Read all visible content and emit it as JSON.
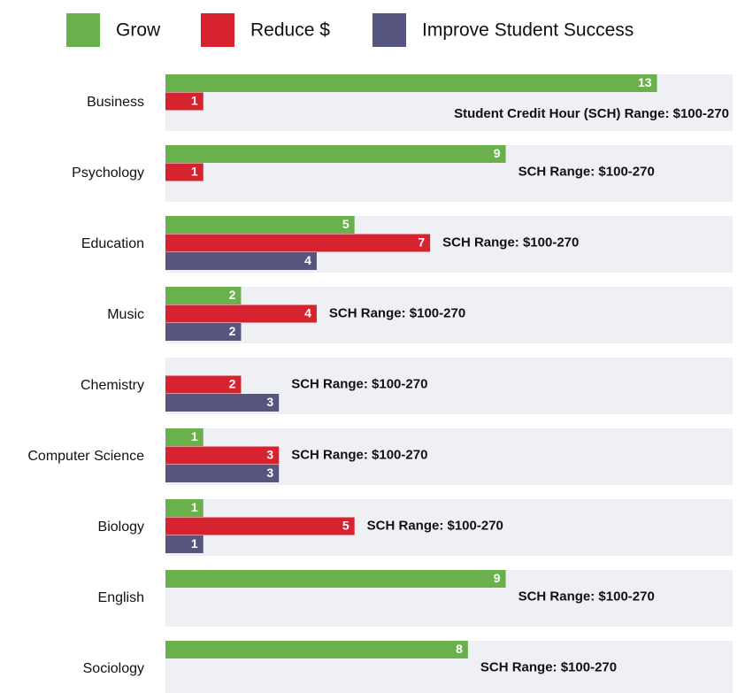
{
  "chart_data": {
    "type": "hbar",
    "categories": [
      "Business",
      "Psychology",
      "Education",
      "Music",
      "Chemistry",
      "Computer Science",
      "Biology",
      "English",
      "Sociology"
    ],
    "series": [
      {
        "name": "Grow",
        "color": "#6ab04c",
        "values": [
          13,
          9,
          5,
          2,
          null,
          1,
          1,
          9,
          8
        ]
      },
      {
        "name": "Reduce $",
        "color": "#d7222f",
        "values": [
          1,
          1,
          7,
          4,
          2,
          3,
          5,
          null,
          null
        ]
      },
      {
        "name": "Improve Student Success",
        "color": "#55557f",
        "values": [
          null,
          null,
          4,
          2,
          3,
          3,
          1,
          null,
          null
        ]
      }
    ],
    "annotations": [
      "Student Credit Hour (SCH) Range: $100-270",
      "SCH Range: $100-270",
      "SCH Range: $100-270",
      "SCH Range: $100-270",
      "SCH Range: $100-270",
      "SCH Range: $100-270",
      "SCH Range: $100-270",
      "SCH Range: $100-270",
      "SCH Range: $100-270"
    ],
    "xlim": [
      0,
      15
    ],
    "legend": "top"
  }
}
